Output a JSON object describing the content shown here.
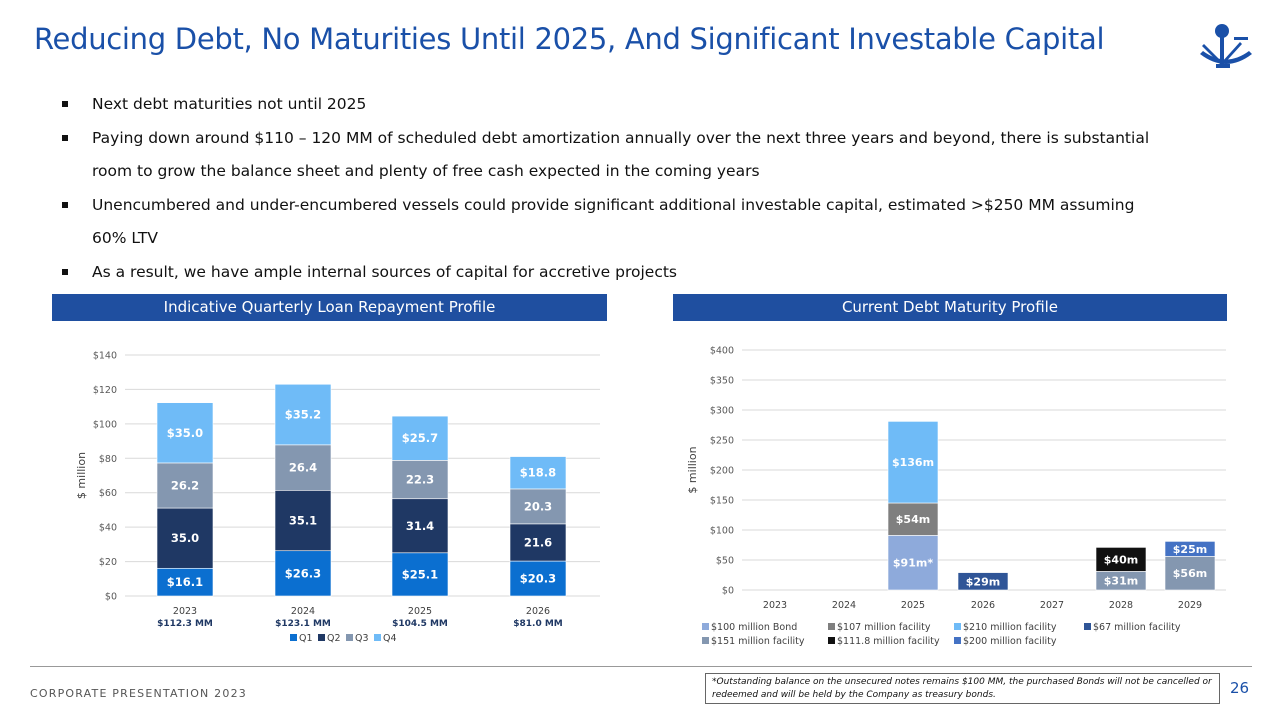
{
  "title": "Reducing Debt, No Maturities Until 2025, And Significant Investable Capital",
  "logo": "sextant-logo",
  "bullets": [
    "Next debt maturities not until 2025",
    "Paying down around $110 – 120 MM of scheduled debt amortization annually over the next three years and beyond, there is substantial room to grow the balance sheet and plenty of free cash expected in the coming years",
    "Unencumbered and under-encumbered vessels could provide significant additional investable capital, estimated >$250 MM assuming 60% LTV",
    "As a result, we have ample internal sources of capital for accretive projects"
  ],
  "colors": {
    "title": "#1a50a8",
    "header": "#1f4fa0"
  },
  "chart_data": [
    {
      "type": "bar",
      "stacked": true,
      "title": "Indicative Quarterly Loan Repayment Profile",
      "ylabel": "$ million",
      "ylim": [
        0,
        140
      ],
      "yticks": [
        "$0",
        "$20",
        "$40",
        "$60",
        "$80",
        "$100",
        "$120",
        "$140"
      ],
      "grid": true,
      "legend": "bottom",
      "categories": [
        "2023",
        "2024",
        "2025",
        "2026"
      ],
      "category_totals": [
        "$112.3 MM",
        "$123.1 MM",
        "$104.5 MM",
        "$81.0 MM"
      ],
      "series": [
        {
          "name": "Q1",
          "color": "#0b6fd0",
          "values": [
            16.1,
            26.3,
            25.1,
            20.3
          ],
          "labels": [
            "$16.1",
            "$26.3",
            "$25.1",
            "$20.3"
          ]
        },
        {
          "name": "Q2",
          "color": "#1f3864",
          "values": [
            35.0,
            35.1,
            31.4,
            21.6
          ],
          "labels": [
            "35.0",
            "35.1",
            "31.4",
            "21.6"
          ]
        },
        {
          "name": "Q3",
          "color": "#8497b0",
          "values": [
            26.2,
            26.4,
            22.3,
            20.3
          ],
          "labels": [
            "26.2",
            "26.4",
            "22.3",
            "20.3"
          ]
        },
        {
          "name": "Q4",
          "color": "#6fbbf7",
          "values": [
            35.0,
            35.2,
            25.7,
            18.8
          ],
          "labels": [
            "$35.0",
            "$35.2",
            "$25.7",
            "$18.8"
          ]
        }
      ]
    },
    {
      "type": "bar",
      "stacked": true,
      "title": "Current Debt Maturity Profile",
      "ylabel": "$ million",
      "ylim": [
        0,
        400
      ],
      "yticks": [
        "$0",
        "$50",
        "$100",
        "$150",
        "$200",
        "$250",
        "$300",
        "$350",
        "$400"
      ],
      "grid": true,
      "legend": "bottom",
      "categories": [
        "2023",
        "2024",
        "2025",
        "2026",
        "2027",
        "2028",
        "2029"
      ],
      "series": [
        {
          "name": "$100 million Bond",
          "color": "#8eaadb",
          "values": [
            0,
            0,
            91,
            0,
            0,
            0,
            0
          ],
          "labels": [
            "",
            "",
            "$91m*",
            "",
            "",
            "",
            ""
          ]
        },
        {
          "name": "$107 million facility",
          "color": "#7f7f7f",
          "values": [
            0,
            0,
            54,
            0,
            0,
            0,
            0
          ],
          "labels": [
            "",
            "",
            "$54m",
            "",
            "",
            "",
            ""
          ]
        },
        {
          "name": "$210 million facility",
          "color": "#6fbbf7",
          "values": [
            0,
            0,
            136,
            0,
            0,
            0,
            0
          ],
          "labels": [
            "",
            "",
            "$136m",
            "",
            "",
            "",
            ""
          ]
        },
        {
          "name": "$67 million facility",
          "color": "#2f5597",
          "values": [
            0,
            0,
            0,
            29,
            0,
            0,
            0
          ],
          "labels": [
            "",
            "",
            "",
            "$29m",
            "",
            "",
            ""
          ]
        },
        {
          "name": "$151 million facility",
          "color": "#8497b0",
          "values": [
            0,
            0,
            0,
            0,
            0,
            31,
            56
          ],
          "labels": [
            "",
            "",
            "",
            "",
            "",
            "$31m",
            "$56m"
          ]
        },
        {
          "name": "$111.8 million facility",
          "color": "#111111",
          "values": [
            0,
            0,
            0,
            0,
            0,
            40,
            0
          ],
          "labels": [
            "",
            "",
            "",
            "",
            "",
            "$40m",
            ""
          ]
        },
        {
          "name": "$200 million facility",
          "color": "#4472c4",
          "values": [
            0,
            0,
            0,
            0,
            0,
            0,
            25
          ],
          "labels": [
            "",
            "",
            "",
            "",
            "",
            "",
            "$25m"
          ]
        }
      ]
    }
  ],
  "footer": "CORPORATE PRESENTATION 2023",
  "footnote": "*Outstanding balance on the unsecured notes remains $100 MM, the purchased Bonds will not be cancelled or redeemed and will be held by the Company as treasury bonds.",
  "page_number": "26"
}
